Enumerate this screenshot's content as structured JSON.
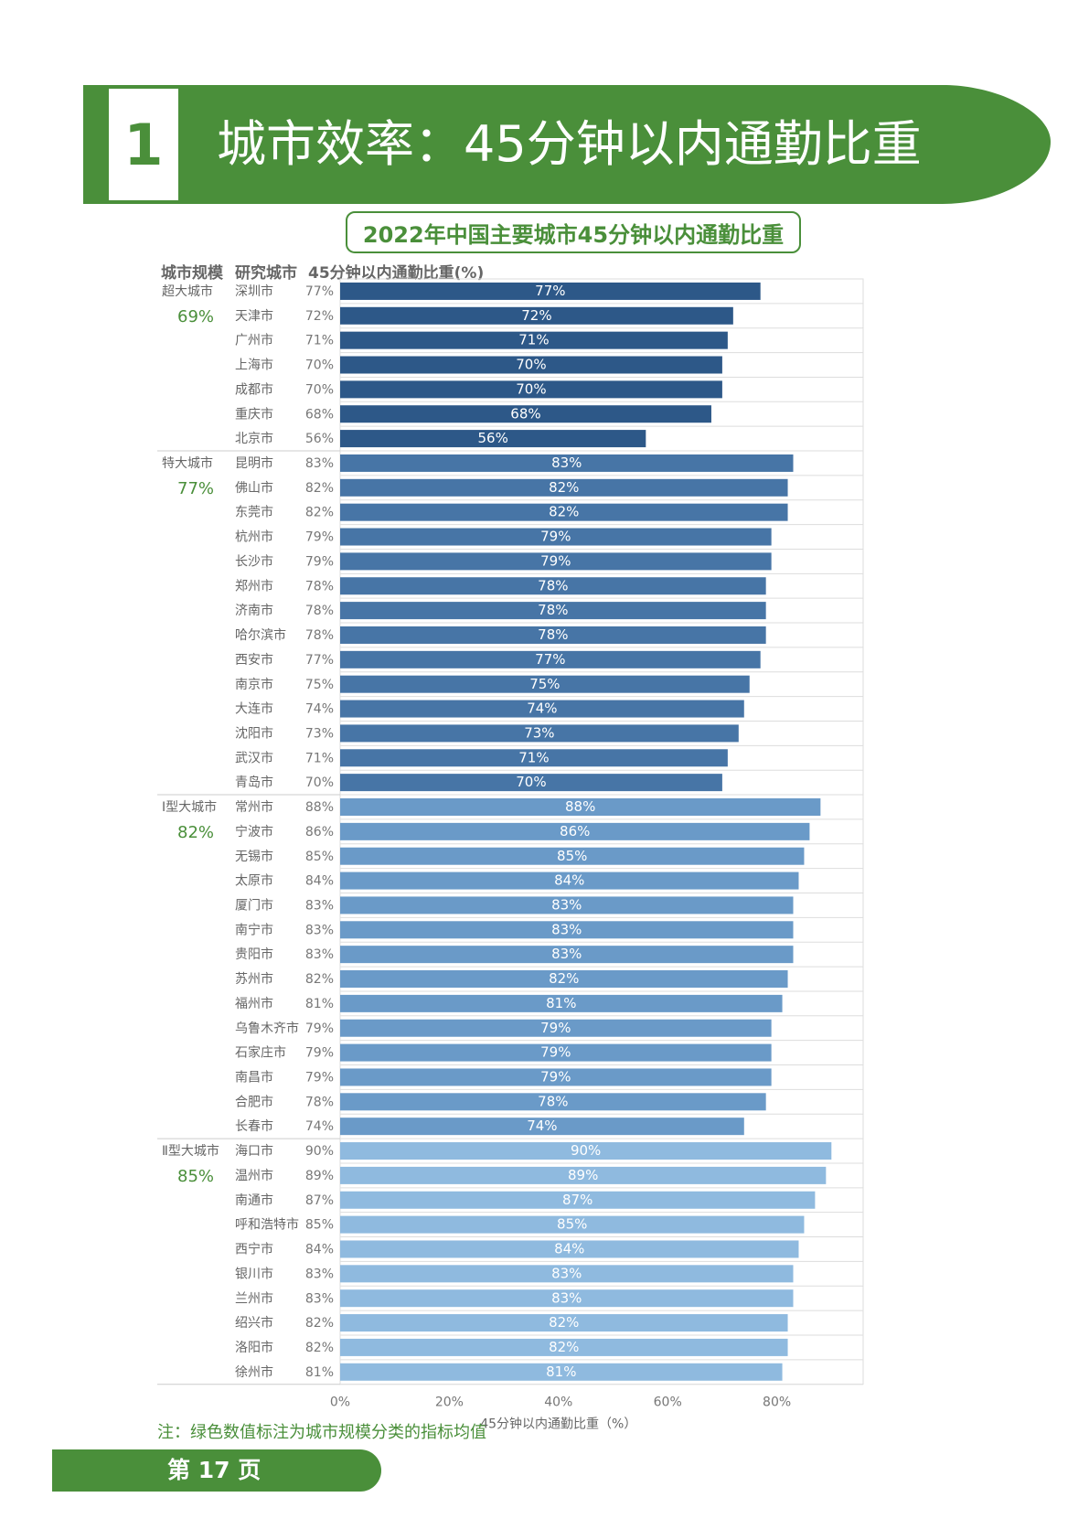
{
  "banner": {
    "number": "1",
    "title": "城市效率：45分钟以内通勤比重"
  },
  "chart_title": "2022年中国主要城市45分钟以内通勤比重",
  "column_headers": {
    "scale": "城市规模",
    "city": "研究城市",
    "value": "45分钟以内通勤比重(%)"
  },
  "chart_data": {
    "type": "bar",
    "orientation": "horizontal",
    "title": "2022年中国主要城市45分钟以内通勤比重",
    "xlabel": "45分钟以内通勤比重（%）",
    "ylabel": "",
    "xlim": [
      0,
      95
    ],
    "xticks": [
      0,
      20,
      40,
      60,
      80
    ],
    "xtick_labels": [
      "0%",
      "20%",
      "40%",
      "60%",
      "80%"
    ],
    "unit": "%",
    "groups": [
      {
        "name": "超大城市",
        "average": "69%",
        "color": "#2d5888",
        "cities": [
          "深圳市",
          "天津市",
          "广州市",
          "上海市",
          "成都市",
          "重庆市",
          "北京市"
        ],
        "values": [
          77,
          72,
          71,
          70,
          70,
          68,
          56
        ]
      },
      {
        "name": "特大城市",
        "average": "77%",
        "color": "#4775a6",
        "cities": [
          "昆明市",
          "佛山市",
          "东莞市",
          "杭州市",
          "长沙市",
          "郑州市",
          "济南市",
          "哈尔滨市",
          "西安市",
          "南京市",
          "大连市",
          "沈阳市",
          "武汉市",
          "青岛市"
        ],
        "values": [
          83,
          82,
          82,
          79,
          79,
          78,
          78,
          78,
          77,
          75,
          74,
          73,
          71,
          70
        ]
      },
      {
        "name": "Ⅰ型大城市",
        "average": "82%",
        "color": "#6a9ac8",
        "cities": [
          "常州市",
          "宁波市",
          "无锡市",
          "太原市",
          "厦门市",
          "南宁市",
          "贵阳市",
          "苏州市",
          "福州市",
          "乌鲁木齐市",
          "石家庄市",
          "南昌市",
          "合肥市",
          "长春市"
        ],
        "values": [
          88,
          86,
          85,
          84,
          83,
          83,
          83,
          82,
          81,
          79,
          79,
          79,
          78,
          74
        ]
      },
      {
        "name": "Ⅱ型大城市",
        "average": "85%",
        "color": "#8fbadf",
        "cities": [
          "海口市",
          "温州市",
          "南通市",
          "呼和浩特市",
          "西宁市",
          "银川市",
          "兰州市",
          "绍兴市",
          "洛阳市",
          "徐州市"
        ],
        "values": [
          90,
          89,
          87,
          85,
          84,
          83,
          83,
          82,
          82,
          81
        ]
      }
    ],
    "note": "注：绿色数值标注为城市规模分类的指标均值"
  },
  "page": {
    "label": "第 17 页"
  },
  "colors": {
    "accent_green": "#4a8f3a",
    "gridline": "#dddddd"
  }
}
